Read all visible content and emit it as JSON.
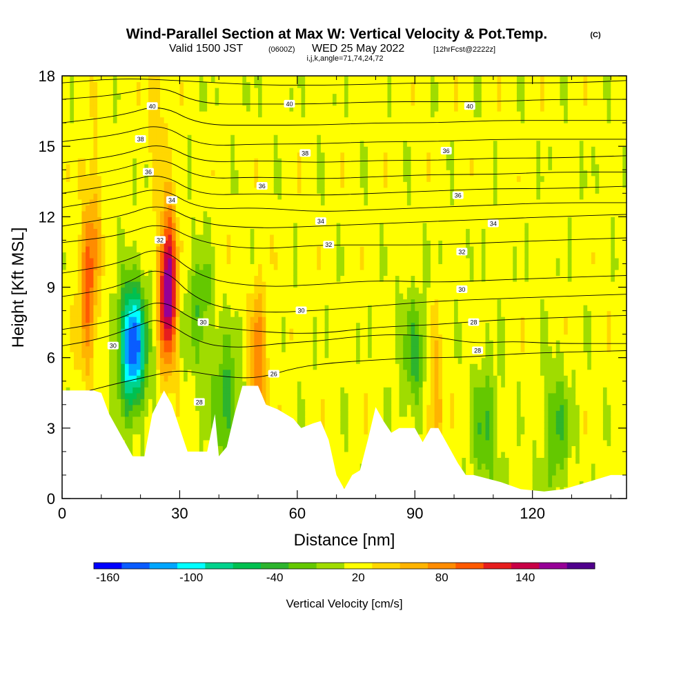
{
  "header": {
    "title": "Wind-Parallel Section at Max W: Vertical Velocity & Pot.Temp.",
    "copyright": "(C)",
    "valid_prefix": "Valid 1500 JST",
    "valid_utc": "(0600Z)",
    "valid_date": "WED 25 May 2022",
    "forecast": "[12hrFcst@2222z]",
    "indices": "i,j,k,angle=71,74,24,72"
  },
  "chart_data": {
    "type": "heatmap",
    "xlabel": "Distance [nm]",
    "ylabel": "Height [Kft MSL]",
    "xlim": [
      0,
      144
    ],
    "ylim": [
      0,
      18
    ],
    "x_ticks": [
      0,
      30,
      60,
      90,
      120
    ],
    "y_ticks": [
      0,
      3,
      6,
      9,
      12,
      15,
      18
    ],
    "colorbar": {
      "title": "Vertical Velocity [cm/s]",
      "levels": [
        -160,
        -140,
        -120,
        -100,
        -80,
        -60,
        -40,
        -20,
        0,
        20,
        40,
        60,
        80,
        100,
        120,
        140,
        160
      ],
      "tick_labels": [
        "-160",
        "-100",
        "-40",
        "20",
        "80",
        "140"
      ],
      "colors": [
        "#0000ff",
        "#0a5cff",
        "#00a6ff",
        "#00ffff",
        "#00d28c",
        "#00c050",
        "#2db42d",
        "#64c800",
        "#a0dc00",
        "#ffff00",
        "#ffd700",
        "#ffb400",
        "#ff8c00",
        "#ff5a00",
        "#e61e1e",
        "#c80046",
        "#960096",
        "#50008c"
      ]
    },
    "updrafts": [
      {
        "x": 6.5,
        "y": 8.5,
        "peak": 75
      },
      {
        "x": 27,
        "y": 9,
        "peak": 160
      },
      {
        "x": 50,
        "y": 5.7,
        "peak": 70
      },
      {
        "x": 95,
        "y": 4,
        "peak": 50
      },
      {
        "x": 8,
        "y": 12,
        "peak": 35
      },
      {
        "x": 24,
        "y": 17,
        "peak": 30
      }
    ],
    "downdrafts": [
      {
        "x": 18,
        "y": 6.5,
        "peak": -165
      },
      {
        "x": 35,
        "y": 8,
        "peak": -45
      },
      {
        "x": 42,
        "y": 4,
        "peak": -60
      },
      {
        "x": 90,
        "y": 6,
        "peak": -50
      },
      {
        "x": 108,
        "y": 3,
        "peak": -50
      },
      {
        "x": 126,
        "y": 3,
        "peak": -50
      }
    ],
    "terrain_kft": [
      [
        0,
        4.6
      ],
      [
        8,
        4.6
      ],
      [
        10,
        4.5
      ],
      [
        12,
        3.6
      ],
      [
        14,
        3.0
      ],
      [
        16,
        2.4
      ],
      [
        18,
        1.8
      ],
      [
        21,
        1.8
      ],
      [
        23,
        3.6
      ],
      [
        26,
        4.6
      ],
      [
        28,
        4.0
      ],
      [
        30,
        3.0
      ],
      [
        32,
        2.0
      ],
      [
        37,
        2.0
      ],
      [
        39,
        3.6
      ],
      [
        40,
        1.8
      ],
      [
        42,
        2.2
      ],
      [
        44,
        3.6
      ],
      [
        46,
        4.8
      ],
      [
        50,
        4.8
      ],
      [
        52,
        4.0
      ],
      [
        55,
        3.8
      ],
      [
        57,
        3.6
      ],
      [
        59,
        3.4
      ],
      [
        61,
        3.0
      ],
      [
        64,
        3.2
      ],
      [
        66,
        3.3
      ],
      [
        68,
        2.5
      ],
      [
        70,
        1.0
      ],
      [
        72,
        0.4
      ],
      [
        74,
        1.0
      ],
      [
        76,
        1.2
      ],
      [
        78,
        2.5
      ],
      [
        80,
        3.9
      ],
      [
        82,
        3.3
      ],
      [
        84,
        2.8
      ],
      [
        86,
        3.0
      ],
      [
        90,
        3.0
      ],
      [
        92,
        2.4
      ],
      [
        94,
        3.0
      ],
      [
        96,
        3.0
      ],
      [
        99,
        2.1
      ],
      [
        101,
        1.5
      ],
      [
        103,
        1.0
      ],
      [
        105,
        1.0
      ],
      [
        112,
        0.7
      ],
      [
        117,
        0.4
      ],
      [
        123,
        0.3
      ],
      [
        128,
        0.4
      ],
      [
        134,
        0.7
      ],
      [
        140,
        1.0
      ],
      [
        144,
        1.0
      ]
    ],
    "isentropes": [
      {
        "label": "26",
        "label_pos": [
          54,
          5.3
        ],
        "points": [
          [
            7,
            4.6
          ],
          [
            14,
            4.9
          ],
          [
            22,
            5.2
          ],
          [
            30,
            5.5
          ],
          [
            40,
            5.2
          ],
          [
            50,
            5.1
          ],
          [
            60,
            5.6
          ],
          [
            70,
            5.8
          ],
          [
            80,
            5.9
          ],
          [
            90,
            6.0
          ],
          [
            100,
            6.0
          ],
          [
            110,
            6.1
          ],
          [
            120,
            6.2
          ],
          [
            144,
            6.3
          ]
        ]
      },
      {
        "label": "28",
        "label_pos": [
          106,
          6.3
        ],
        "points": [
          [
            0,
            6.5
          ],
          [
            10,
            6.8
          ],
          [
            20,
            7.4
          ],
          [
            25,
            7.7
          ],
          [
            35,
            6.6
          ],
          [
            45,
            6.4
          ],
          [
            55,
            6.6
          ],
          [
            65,
            6.7
          ],
          [
            75,
            6.9
          ],
          [
            85,
            7.0
          ],
          [
            95,
            6.9
          ],
          [
            105,
            6.6
          ],
          [
            115,
            6.7
          ],
          [
            125,
            6.6
          ],
          [
            144,
            6.6
          ]
        ]
      },
      {
        "label": "28",
        "label_pos": [
          105,
          7.5
        ],
        "points": [
          [
            0,
            7.2
          ],
          [
            15,
            7.6
          ],
          [
            25,
            8.6
          ],
          [
            35,
            7.4
          ],
          [
            50,
            7.1
          ],
          [
            65,
            7.0
          ],
          [
            80,
            7.3
          ],
          [
            95,
            7.4
          ],
          [
            110,
            7.6
          ],
          [
            125,
            7.7
          ],
          [
            144,
            7.8
          ]
        ]
      },
      {
        "label": "30",
        "label_pos": [
          61,
          8.0
        ],
        "points": [
          [
            0,
            8.6
          ],
          [
            15,
            9.0
          ],
          [
            25,
            10.0
          ],
          [
            35,
            8.3
          ],
          [
            50,
            7.9
          ],
          [
            65,
            8.0
          ],
          [
            80,
            8.2
          ],
          [
            95,
            8.4
          ],
          [
            110,
            8.5
          ],
          [
            125,
            8.6
          ],
          [
            144,
            8.7
          ]
        ]
      },
      {
        "label": "30",
        "label_pos": [
          102,
          8.9
        ],
        "points": [
          [
            0,
            9.6
          ],
          [
            15,
            10.0
          ],
          [
            25,
            10.8
          ],
          [
            35,
            9.4
          ],
          [
            50,
            9.0
          ],
          [
            65,
            9.1
          ],
          [
            80,
            9.3
          ],
          [
            95,
            9.2
          ],
          [
            110,
            9.3
          ],
          [
            125,
            9.4
          ],
          [
            144,
            9.5
          ]
        ]
      },
      {
        "label": "32",
        "label_pos": [
          68,
          10.8
        ],
        "points": [
          [
            0,
            10.9
          ],
          [
            15,
            11.2
          ],
          [
            25,
            11.8
          ],
          [
            35,
            10.9
          ],
          [
            50,
            10.6
          ],
          [
            65,
            10.8
          ],
          [
            80,
            10.8
          ],
          [
            95,
            10.8
          ],
          [
            110,
            10.9
          ],
          [
            125,
            11.0
          ],
          [
            144,
            11.1
          ]
        ]
      },
      {
        "label": "32",
        "label_pos": [
          102,
          10.5
        ],
        "points": [
          [
            0,
            11.6
          ],
          [
            15,
            12.0
          ],
          [
            25,
            12.6
          ],
          [
            35,
            11.7
          ],
          [
            50,
            11.5
          ],
          [
            65,
            11.6
          ],
          [
            80,
            11.7
          ],
          [
            95,
            11.8
          ],
          [
            110,
            11.9
          ],
          [
            125,
            12.0
          ],
          [
            144,
            12.1
          ]
        ]
      },
      {
        "label": "34",
        "label_pos": [
          66,
          11.8
        ],
        "points": [
          [
            0,
            12.4
          ],
          [
            15,
            12.8
          ],
          [
            25,
            13.3
          ],
          [
            35,
            12.3
          ],
          [
            50,
            12.4
          ],
          [
            65,
            12.2
          ],
          [
            80,
            12.3
          ],
          [
            95,
            12.4
          ],
          [
            110,
            12.5
          ],
          [
            125,
            12.6
          ],
          [
            144,
            12.6
          ]
        ]
      },
      {
        "label": "34",
        "label_pos": [
          110,
          11.7
        ],
        "points": [
          [
            0,
            13.0
          ],
          [
            15,
            13.4
          ],
          [
            25,
            13.9
          ],
          [
            35,
            12.9
          ],
          [
            50,
            13.0
          ],
          [
            65,
            12.9
          ],
          [
            80,
            13.0
          ],
          [
            95,
            13.1
          ],
          [
            110,
            13.2
          ],
          [
            125,
            13.2
          ],
          [
            144,
            13.3
          ]
        ]
      },
      {
        "label": "36",
        "label_pos": [
          101,
          12.9
        ],
        "points": [
          [
            0,
            13.6
          ],
          [
            15,
            14.0
          ],
          [
            25,
            14.6
          ],
          [
            35,
            13.6
          ],
          [
            50,
            13.7
          ],
          [
            65,
            13.6
          ],
          [
            80,
            13.7
          ],
          [
            95,
            13.8
          ],
          [
            110,
            13.8
          ],
          [
            125,
            13.9
          ],
          [
            144,
            13.9
          ]
        ]
      },
      {
        "label": "36",
        "label_pos": [
          22,
          13.9
        ],
        "points": [
          [
            0,
            14.3
          ],
          [
            15,
            14.6
          ],
          [
            25,
            15.2
          ],
          [
            35,
            14.3
          ],
          [
            50,
            14.4
          ],
          [
            65,
            14.3
          ],
          [
            80,
            14.4
          ],
          [
            95,
            14.4
          ],
          [
            110,
            14.5
          ],
          [
            125,
            14.5
          ],
          [
            144,
            14.6
          ]
        ]
      },
      {
        "label": "38",
        "label_pos": [
          20,
          15.3
        ],
        "points": [
          [
            0,
            15.2
          ],
          [
            15,
            15.5
          ],
          [
            25,
            16.0
          ],
          [
            35,
            15.0
          ],
          [
            50,
            15.1
          ],
          [
            65,
            15.1
          ],
          [
            80,
            15.2
          ],
          [
            95,
            15.2
          ],
          [
            110,
            15.3
          ],
          [
            125,
            15.3
          ],
          [
            144,
            15.3
          ]
        ]
      },
      {
        "label": "38",
        "label_pos": [
          62,
          14.7
        ],
        "points": [
          [
            0,
            16.0
          ],
          [
            15,
            16.3
          ],
          [
            25,
            16.8
          ],
          [
            35,
            15.9
          ],
          [
            50,
            15.9
          ],
          [
            65,
            15.9
          ],
          [
            80,
            16.0
          ],
          [
            95,
            16.0
          ],
          [
            110,
            16.1
          ],
          [
            125,
            16.1
          ],
          [
            144,
            16.1
          ]
        ]
      },
      {
        "label": "40",
        "label_pos": [
          23,
          16.7
        ],
        "points": [
          [
            0,
            17.0
          ],
          [
            15,
            17.2
          ],
          [
            25,
            17.6
          ],
          [
            35,
            16.8
          ],
          [
            50,
            16.8
          ],
          [
            65,
            16.8
          ],
          [
            80,
            16.9
          ],
          [
            95,
            16.9
          ],
          [
            110,
            16.9
          ],
          [
            125,
            17.0
          ],
          [
            144,
            17.0
          ]
        ]
      },
      {
        "label": "40",
        "label_pos": [
          58,
          16.8
        ],
        "points": [
          [
            0,
            17.7
          ],
          [
            15,
            17.9
          ],
          [
            30,
            17.8
          ],
          [
            50,
            17.6
          ],
          [
            70,
            17.6
          ],
          [
            90,
            17.7
          ],
          [
            110,
            17.7
          ],
          [
            130,
            17.7
          ],
          [
            144,
            17.8
          ]
        ]
      }
    ],
    "extra_labels": [
      {
        "label": "30",
        "pos": [
          13,
          6.5
        ]
      },
      {
        "label": "30",
        "pos": [
          36,
          7.5
        ]
      },
      {
        "label": "28",
        "pos": [
          35,
          4.1
        ]
      },
      {
        "label": "26",
        "pos": [
          54,
          5.3
        ]
      },
      {
        "label": "36",
        "pos": [
          51,
          13.3
        ]
      },
      {
        "label": "36",
        "pos": [
          98,
          14.8
        ]
      },
      {
        "label": "40",
        "pos": [
          104,
          16.7
        ]
      },
      {
        "label": "32",
        "pos": [
          25,
          11.0
        ]
      },
      {
        "label": "34",
        "pos": [
          28,
          12.7
        ]
      }
    ]
  }
}
